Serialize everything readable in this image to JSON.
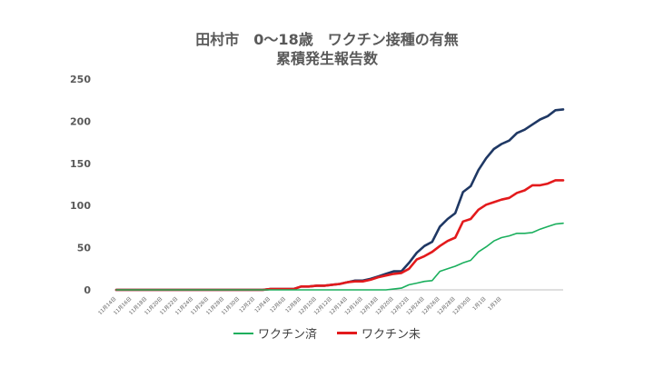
{
  "chart_data": {
    "type": "line",
    "title": "田村市　0～18歳　ワクチン接種の有無",
    "subtitle": "累積発生報告数",
    "xlabel": "",
    "ylabel": "",
    "ylim": [
      0,
      250
    ],
    "yticks": [
      0,
      50,
      100,
      150,
      200,
      250
    ],
    "grid": false,
    "legend_position": "bottom",
    "x_tick_labels": [
      "11月14日",
      "11月16日",
      "11月18日",
      "11月20日",
      "11月22日",
      "11月24日",
      "11月26日",
      "11月28日",
      "11月30日",
      "12月2日",
      "12月4日",
      "12月6日",
      "12月8日",
      "12月10日",
      "12月12日",
      "12月14日",
      "12月16日",
      "12月18日",
      "12月20日",
      "12月22日",
      "12月24日",
      "12月26日",
      "12月28日",
      "12月30日",
      "1月1日",
      "1月3日"
    ],
    "series": [
      {
        "name": "",
        "color": "#1f3864",
        "values": [
          0,
          0,
          0,
          0,
          0,
          0,
          0,
          0,
          0,
          0,
          0,
          0,
          0,
          0,
          0,
          0,
          0,
          0,
          0,
          0,
          1,
          1,
          1,
          1,
          4,
          4,
          5,
          5,
          6,
          7,
          9,
          11,
          11,
          13,
          16,
          19,
          22,
          22,
          32,
          44,
          52,
          57,
          75,
          84,
          91,
          116,
          123,
          142,
          156,
          167,
          173,
          177,
          186,
          190,
          196,
          202,
          206,
          213,
          214
        ]
      },
      {
        "name": "ワクチン未",
        "color": "#e31a1c",
        "values": [
          0,
          0,
          0,
          0,
          0,
          0,
          0,
          0,
          0,
          0,
          0,
          0,
          0,
          0,
          0,
          0,
          0,
          0,
          0,
          0,
          1,
          1,
          1,
          1,
          4,
          4,
          5,
          5,
          6,
          7,
          9,
          10,
          10,
          12,
          15,
          17,
          19,
          20,
          25,
          36,
          40,
          45,
          52,
          58,
          62,
          81,
          84,
          95,
          101,
          104,
          107,
          109,
          115,
          118,
          124,
          124,
          126,
          130,
          130
        ]
      },
      {
        "name": "ワクチン済",
        "color": "#1aaf5d",
        "values": [
          0,
          0,
          0,
          0,
          0,
          0,
          0,
          0,
          0,
          0,
          0,
          0,
          0,
          0,
          0,
          0,
          0,
          0,
          0,
          0,
          0,
          0,
          0,
          0,
          0,
          0,
          0,
          0,
          0,
          0,
          0,
          0,
          0,
          0,
          0,
          0,
          1,
          2,
          6,
          8,
          10,
          11,
          22,
          25,
          28,
          32,
          35,
          45,
          51,
          58,
          62,
          64,
          67,
          67,
          68,
          72,
          75,
          78,
          79
        ]
      }
    ]
  }
}
